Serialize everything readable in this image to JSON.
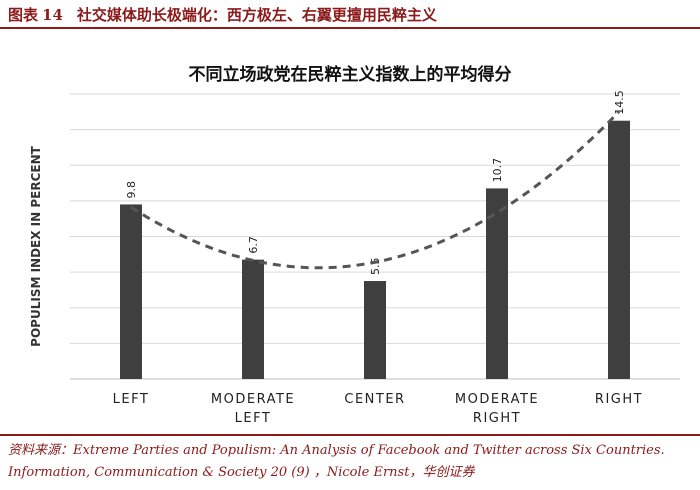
{
  "figure": {
    "label": "图表",
    "number": "14",
    "caption": "社交媒体助长极端化：西方极左、右翼更擅用民粹主义"
  },
  "chart_data": {
    "type": "bar",
    "title": "不同立场政党在民粹主义指数上的平均得分",
    "ylabel": "POPULISM INDEX IN PERCENT",
    "xlabel": "",
    "categories": [
      "LEFT",
      "MODERATE LEFT",
      "CENTER",
      "MODERATE RIGHT",
      "RIGHT"
    ],
    "values": [
      9.8,
      6.7,
      5.5,
      10.7,
      14.5
    ],
    "data_labels": [
      "9.8",
      "6.7",
      "5.5",
      "10.7",
      "14.5"
    ],
    "ylim": [
      0,
      16
    ],
    "grid": true,
    "trendline": "dashed quadratic",
    "bar_color": "#3f3f3f"
  },
  "source": {
    "line1": "资料来源：Extreme Parties and Populism: An Analysis of Facebook and Twitter across Six Countries.",
    "line2": "Information, Communication & Society 20 (9)  ，Nicole Ernst，华创证券"
  }
}
